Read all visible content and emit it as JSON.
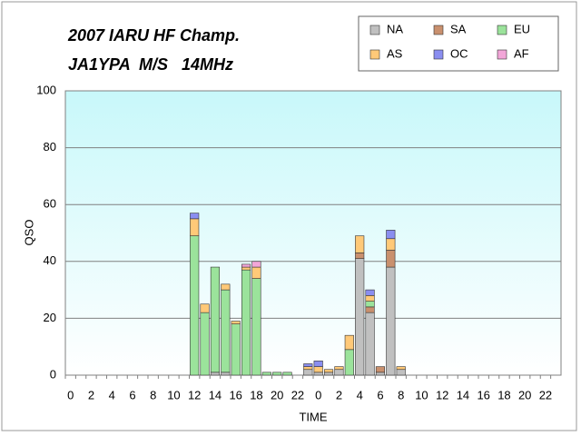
{
  "chart_data": {
    "type": "stacked-bar",
    "title": "2007 IARU HF Champ.",
    "subtitle": "JA1YPA  M/S   14MHz",
    "x_label": "TIME",
    "y_label": "QSO",
    "categories": [
      "0",
      null,
      "2",
      null,
      "4",
      null,
      "6",
      null,
      "8",
      null,
      "10",
      null,
      "12",
      null,
      "14",
      null,
      "16",
      null,
      "18",
      null,
      "20",
      null,
      "22",
      null,
      "0",
      null,
      "2",
      null,
      "4",
      null,
      "6",
      null,
      "8",
      null,
      "10",
      null,
      "12",
      null,
      "14",
      null,
      "16",
      null,
      "18",
      null,
      "20",
      null,
      "22",
      null
    ],
    "series": [
      {
        "name": "NA",
        "color": "#c0c0c0",
        "values": [
          0,
          0,
          0,
          0,
          0,
          0,
          0,
          0,
          0,
          0,
          0,
          0,
          0,
          0,
          1,
          1,
          0,
          0,
          0,
          0,
          0,
          0,
          0,
          2,
          1,
          1,
          2,
          0,
          41,
          22,
          1,
          38,
          2,
          0,
          0,
          0,
          0,
          0,
          0,
          0,
          0,
          0,
          0,
          0,
          0,
          0,
          0,
          0
        ]
      },
      {
        "name": "SA",
        "color": "#c9906e",
        "values": [
          0,
          0,
          0,
          0,
          0,
          0,
          0,
          0,
          0,
          0,
          0,
          0,
          0,
          0,
          0,
          0,
          0,
          0,
          0,
          0,
          0,
          0,
          0,
          0,
          0,
          0,
          0,
          0,
          2,
          2,
          2,
          6,
          0,
          0,
          0,
          0,
          0,
          0,
          0,
          0,
          0,
          0,
          0,
          0,
          0,
          0,
          0,
          0
        ]
      },
      {
        "name": "EU",
        "color": "#9be39b",
        "values": [
          0,
          0,
          0,
          0,
          0,
          0,
          0,
          0,
          0,
          0,
          0,
          0,
          49,
          22,
          37,
          29,
          18,
          37,
          34,
          1,
          1,
          1,
          0,
          0,
          0,
          0,
          0,
          9,
          0,
          2,
          0,
          0,
          0,
          0,
          0,
          0,
          0,
          0,
          0,
          0,
          0,
          0,
          0,
          0,
          0,
          0,
          0,
          0
        ]
      },
      {
        "name": "AS",
        "color": "#ffc978",
        "values": [
          0,
          0,
          0,
          0,
          0,
          0,
          0,
          0,
          0,
          0,
          0,
          0,
          6,
          3,
          0,
          2,
          1,
          1,
          4,
          0,
          0,
          0,
          0,
          1,
          2,
          1,
          1,
          5,
          6,
          2,
          0,
          4,
          1,
          0,
          0,
          0,
          0,
          0,
          0,
          0,
          0,
          0,
          0,
          0,
          0,
          0,
          0,
          0
        ]
      },
      {
        "name": "OC",
        "color": "#8a8ef0",
        "values": [
          0,
          0,
          0,
          0,
          0,
          0,
          0,
          0,
          0,
          0,
          0,
          0,
          2,
          0,
          0,
          0,
          0,
          0,
          0,
          0,
          0,
          0,
          0,
          1,
          2,
          0,
          0,
          0,
          0,
          2,
          0,
          3,
          0,
          0,
          0,
          0,
          0,
          0,
          0,
          0,
          0,
          0,
          0,
          0,
          0,
          0,
          0,
          0
        ]
      },
      {
        "name": "AF",
        "color": "#f2a6d8",
        "values": [
          0,
          0,
          0,
          0,
          0,
          0,
          0,
          0,
          0,
          0,
          0,
          0,
          0,
          0,
          0,
          0,
          0,
          1,
          2,
          0,
          0,
          0,
          0,
          0,
          0,
          0,
          0,
          0,
          0,
          0,
          0,
          0,
          0,
          0,
          0,
          0,
          0,
          0,
          0,
          0,
          0,
          0,
          0,
          0,
          0,
          0,
          0,
          0
        ]
      }
    ],
    "ylim": [
      0,
      100
    ],
    "yticks": [
      0,
      20,
      40,
      60,
      80,
      100
    ],
    "grid": true
  }
}
